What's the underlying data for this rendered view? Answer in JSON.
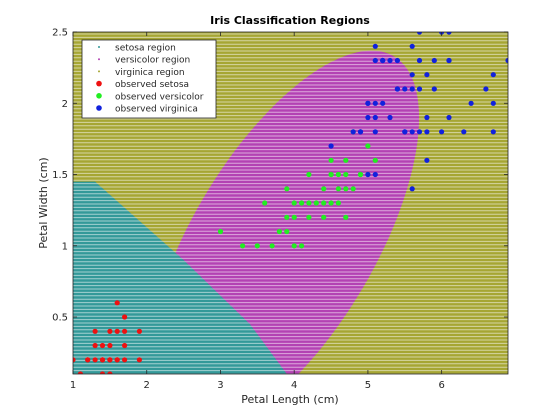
{
  "chart_data": {
    "type": "scatter",
    "title": "Iris Classification Regions",
    "xlabel": "Petal Length (cm)",
    "ylabel": "Petal Width (cm)",
    "xlim": [
      1,
      6.9
    ],
    "ylim": [
      0.1,
      2.5
    ],
    "xticks": [
      1,
      2,
      3,
      4,
      5,
      6
    ],
    "yticks": [
      0.5,
      1,
      1.5,
      2,
      2.5
    ],
    "grid": false,
    "legend_location": "top-left",
    "legend": [
      {
        "label": "setosa region",
        "kind": "region-dot",
        "color": "#339999"
      },
      {
        "label": "versicolor region",
        "kind": "region-dot",
        "color": "#b342b3"
      },
      {
        "label": "virginica region",
        "kind": "region-dot",
        "color": "#a6a633"
      },
      {
        "label": "observed setosa",
        "kind": "marker",
        "color": "#ee1111"
      },
      {
        "label": "observed versicolor",
        "kind": "marker",
        "color": "#22ee22"
      },
      {
        "label": "observed virginica",
        "kind": "marker",
        "color": "#1122dd"
      }
    ],
    "regions": {
      "background_class": "virginica",
      "setosa_boundary": [
        [
          1.0,
          1.45
        ],
        [
          1.3,
          1.45
        ],
        [
          2.5,
          0.9
        ],
        [
          3.4,
          0.45
        ],
        [
          3.9,
          0.1
        ],
        [
          1.0,
          0.1
        ]
      ],
      "versicolor_ellipse": {
        "center": [
          3.85,
          1.02
        ],
        "semi_axes": [
          2.1,
          0.9
        ],
        "rotation_deg": 32
      }
    },
    "series": [
      {
        "name": "observed setosa",
        "color": "#ee1111",
        "points": [
          [
            1.0,
            0.2
          ],
          [
            1.1,
            0.1
          ],
          [
            1.2,
            0.2
          ],
          [
            1.3,
            0.2
          ],
          [
            1.3,
            0.3
          ],
          [
            1.3,
            0.4
          ],
          [
            1.4,
            0.2
          ],
          [
            1.4,
            0.3
          ],
          [
            1.4,
            0.1
          ],
          [
            1.5,
            0.2
          ],
          [
            1.5,
            0.4
          ],
          [
            1.5,
            0.1
          ],
          [
            1.5,
            0.3
          ],
          [
            1.6,
            0.2
          ],
          [
            1.6,
            0.4
          ],
          [
            1.6,
            0.6
          ],
          [
            1.7,
            0.2
          ],
          [
            1.7,
            0.3
          ],
          [
            1.7,
            0.4
          ],
          [
            1.7,
            0.5
          ],
          [
            1.9,
            0.2
          ],
          [
            1.9,
            0.4
          ],
          [
            1.2,
            0.2
          ],
          [
            1.6,
            0.2
          ],
          [
            1.4,
            0.2
          ],
          [
            1.5,
            0.2
          ]
        ]
      },
      {
        "name": "observed versicolor",
        "color": "#22ee22",
        "points": [
          [
            3.0,
            1.1
          ],
          [
            3.3,
            1.0
          ],
          [
            3.5,
            1.0
          ],
          [
            3.6,
            1.3
          ],
          [
            3.7,
            1.0
          ],
          [
            3.8,
            1.1
          ],
          [
            3.9,
            1.1
          ],
          [
            3.9,
            1.4
          ],
          [
            3.9,
            1.2
          ],
          [
            4.0,
            1.0
          ],
          [
            4.0,
            1.2
          ],
          [
            4.0,
            1.3
          ],
          [
            4.1,
            1.0
          ],
          [
            4.1,
            1.3
          ],
          [
            4.2,
            1.2
          ],
          [
            4.2,
            1.3
          ],
          [
            4.2,
            1.5
          ],
          [
            4.3,
            1.3
          ],
          [
            4.4,
            1.2
          ],
          [
            4.4,
            1.3
          ],
          [
            4.4,
            1.4
          ],
          [
            4.5,
            1.3
          ],
          [
            4.5,
            1.5
          ],
          [
            4.5,
            1.6
          ],
          [
            4.6,
            1.3
          ],
          [
            4.6,
            1.4
          ],
          [
            4.6,
            1.5
          ],
          [
            4.7,
            1.2
          ],
          [
            4.7,
            1.4
          ],
          [
            4.7,
            1.5
          ],
          [
            4.7,
            1.6
          ],
          [
            4.8,
            1.4
          ],
          [
            4.8,
            1.8
          ],
          [
            4.9,
            1.5
          ],
          [
            5.0,
            1.7
          ],
          [
            5.1,
            1.6
          ],
          [
            4.5,
            1.5
          ],
          [
            4.9,
            1.5
          ],
          [
            5.0,
            1.5
          ]
        ]
      },
      {
        "name": "observed virginica",
        "color": "#1122dd",
        "points": [
          [
            4.5,
            1.7
          ],
          [
            4.8,
            1.8
          ],
          [
            4.9,
            1.8
          ],
          [
            5.0,
            1.5
          ],
          [
            5.0,
            1.9
          ],
          [
            5.0,
            2.0
          ],
          [
            5.1,
            1.5
          ],
          [
            5.1,
            1.8
          ],
          [
            5.1,
            1.9
          ],
          [
            5.1,
            2.0
          ],
          [
            5.1,
            2.3
          ],
          [
            5.1,
            2.4
          ],
          [
            5.2,
            2.0
          ],
          [
            5.2,
            2.3
          ],
          [
            5.3,
            1.9
          ],
          [
            5.3,
            2.3
          ],
          [
            5.4,
            2.1
          ],
          [
            5.4,
            2.3
          ],
          [
            5.5,
            1.8
          ],
          [
            5.5,
            2.1
          ],
          [
            5.6,
            1.4
          ],
          [
            5.6,
            1.8
          ],
          [
            5.6,
            2.1
          ],
          [
            5.6,
            2.2
          ],
          [
            5.6,
            2.4
          ],
          [
            5.7,
            2.1
          ],
          [
            5.7,
            2.3
          ],
          [
            5.7,
            2.5
          ],
          [
            5.8,
            1.6
          ],
          [
            5.8,
            1.8
          ],
          [
            5.8,
            2.2
          ],
          [
            5.9,
            2.1
          ],
          [
            5.9,
            2.3
          ],
          [
            6.0,
            1.8
          ],
          [
            6.0,
            2.5
          ],
          [
            6.1,
            1.9
          ],
          [
            6.1,
            2.3
          ],
          [
            6.1,
            2.5
          ],
          [
            6.3,
            1.8
          ],
          [
            6.4,
            2.0
          ],
          [
            6.6,
            2.1
          ],
          [
            6.7,
            2.0
          ],
          [
            6.7,
            2.2
          ],
          [
            6.9,
            2.3
          ],
          [
            4.9,
            1.8
          ],
          [
            5.5,
            1.8
          ],
          [
            5.2,
            2.3
          ],
          [
            5.7,
            1.8
          ],
          [
            5.8,
            1.9
          ],
          [
            5.0,
            2.0
          ],
          [
            6.7,
            1.8
          ],
          [
            6.1,
            2.3
          ],
          [
            5.4,
            2.1
          ]
        ]
      }
    ]
  }
}
